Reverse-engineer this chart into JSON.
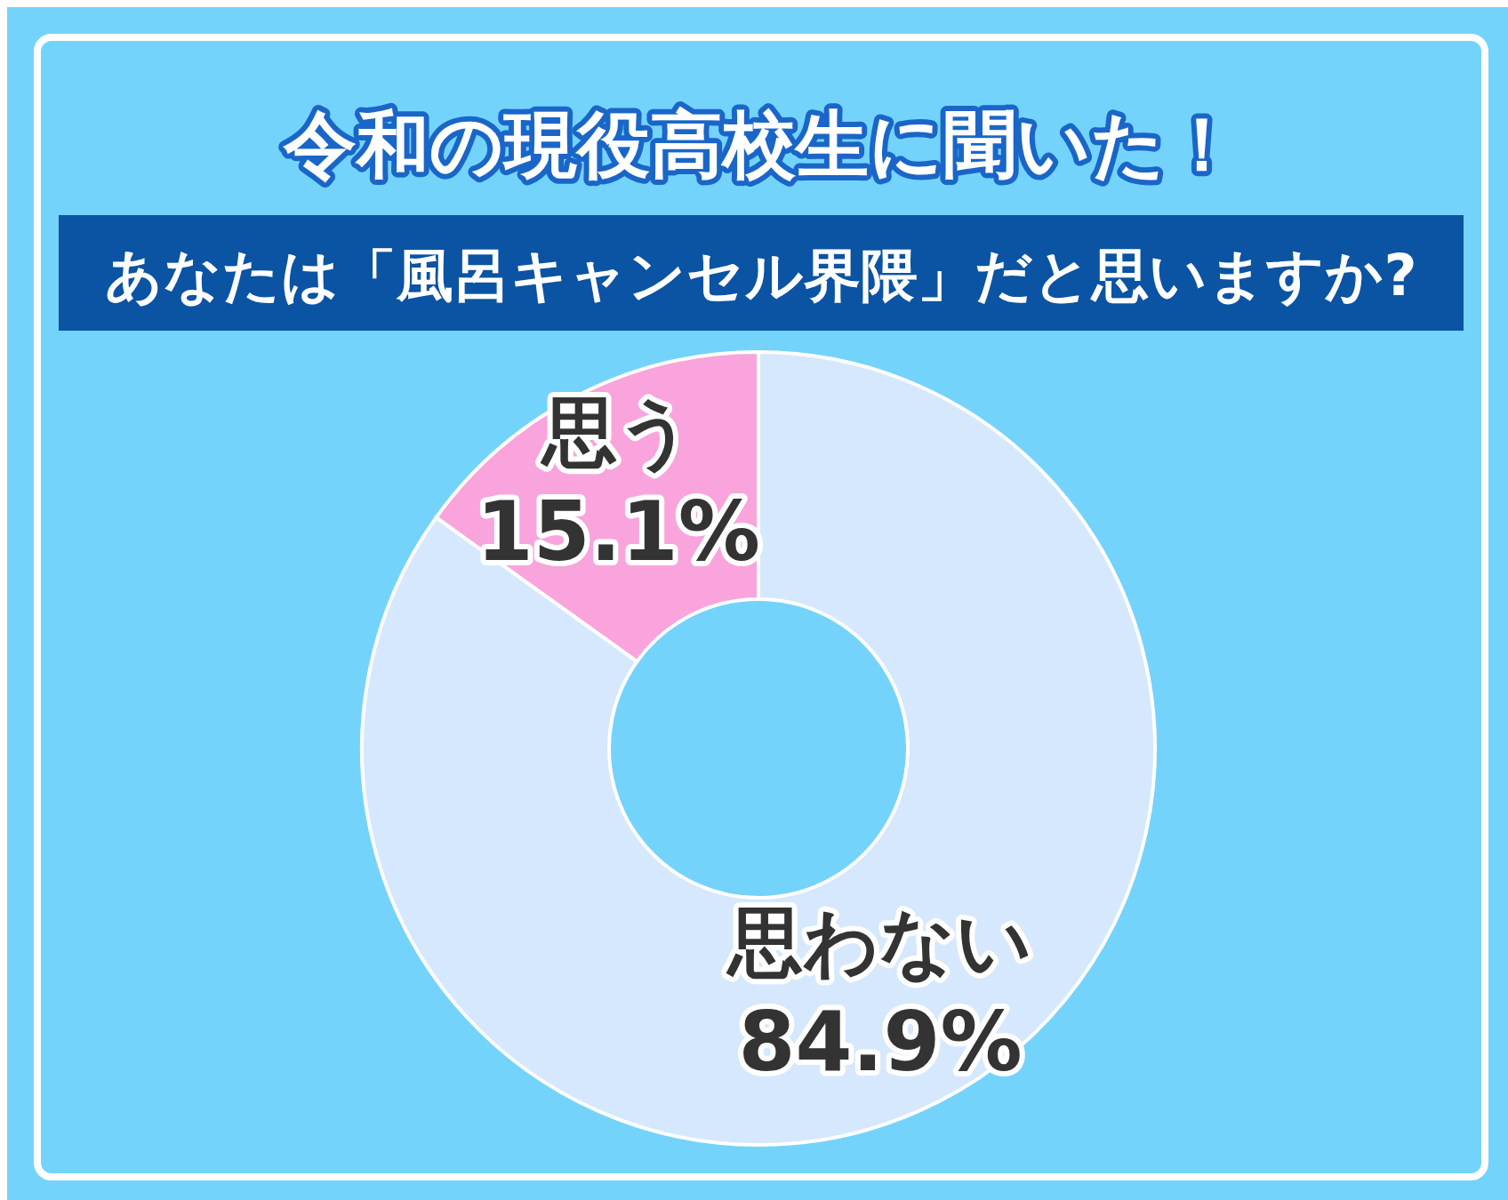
{
  "chart_data": {
    "type": "donut",
    "title": "令和の現役高校生に聞いた！",
    "subtitle": "あなたは「風呂キャンセル界隈」だと思いますか?",
    "categories": [
      "思わない",
      "思う"
    ],
    "values": [
      84.9,
      15.1
    ],
    "colors": [
      "#d6e8fd",
      "#f9a4dc"
    ],
    "value_labels": [
      "84.9%",
      "15.1%"
    ],
    "legend": false
  }
}
